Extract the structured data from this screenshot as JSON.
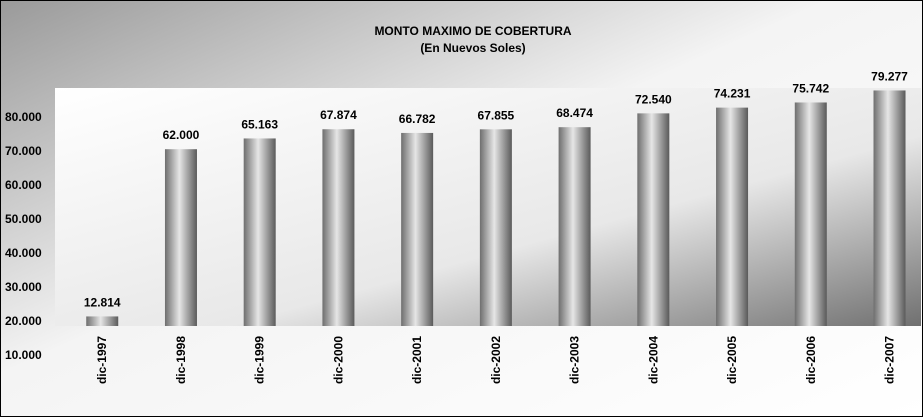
{
  "chart_data": {
    "type": "bar",
    "title": "MONTO MAXIMO DE COBERTURA",
    "subtitle": "(En Nuevos Soles)",
    "categories": [
      "dic-1997",
      "dic-1998",
      "dic-1999",
      "dic-2000",
      "dic-2001",
      "dic-2002",
      "dic-2003",
      "dic-2004",
      "dic-2005",
      "dic-2006",
      "dic-2007"
    ],
    "values": [
      12814,
      62000,
      65163,
      67874,
      66782,
      67855,
      68474,
      72540,
      74231,
      75742,
      79277
    ],
    "value_labels": [
      "12.814",
      "62.000",
      "65.163",
      "67.874",
      "66.782",
      "67.855",
      "68.474",
      "72.540",
      "74.231",
      "75.742",
      "79.277"
    ],
    "color": "#8c8c8c",
    "ylim": [
      10000,
      80000
    ],
    "yticks": [
      {
        "value": 10000,
        "label": "10.000"
      },
      {
        "value": 20000,
        "label": "20.000"
      },
      {
        "value": 30000,
        "label": "30.000"
      },
      {
        "value": 40000,
        "label": "40.000"
      },
      {
        "value": 50000,
        "label": "50.000"
      },
      {
        "value": 60000,
        "label": "60.000"
      },
      {
        "value": 70000,
        "label": "70.000"
      },
      {
        "value": 80000,
        "label": "80.000"
      }
    ],
    "grid": false
  }
}
